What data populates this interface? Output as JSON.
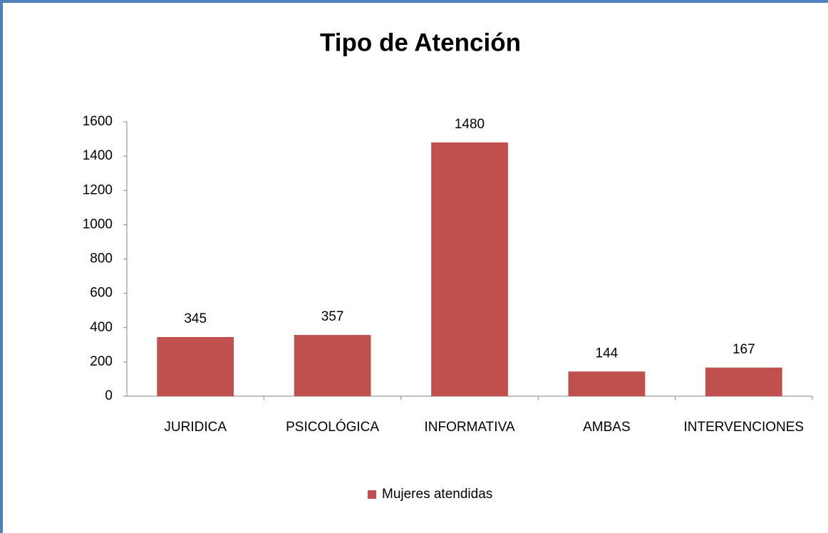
{
  "chart_data": {
    "type": "bar",
    "title": "Tipo de Atención",
    "categories": [
      "JURIDICA",
      "PSICOLÓGICA",
      "INFORMATIVA",
      "AMBAS",
      "INTERVENCIONES"
    ],
    "series": [
      {
        "name": "Mujeres atendidas",
        "color": "#c0504d",
        "values": [
          345,
          357,
          1480,
          144,
          167
        ]
      }
    ],
    "ylim": [
      0,
      1600
    ],
    "yticks": [
      0,
      200,
      400,
      600,
      800,
      1000,
      1200,
      1400,
      1600
    ],
    "grid": false,
    "legend": "bottom"
  }
}
